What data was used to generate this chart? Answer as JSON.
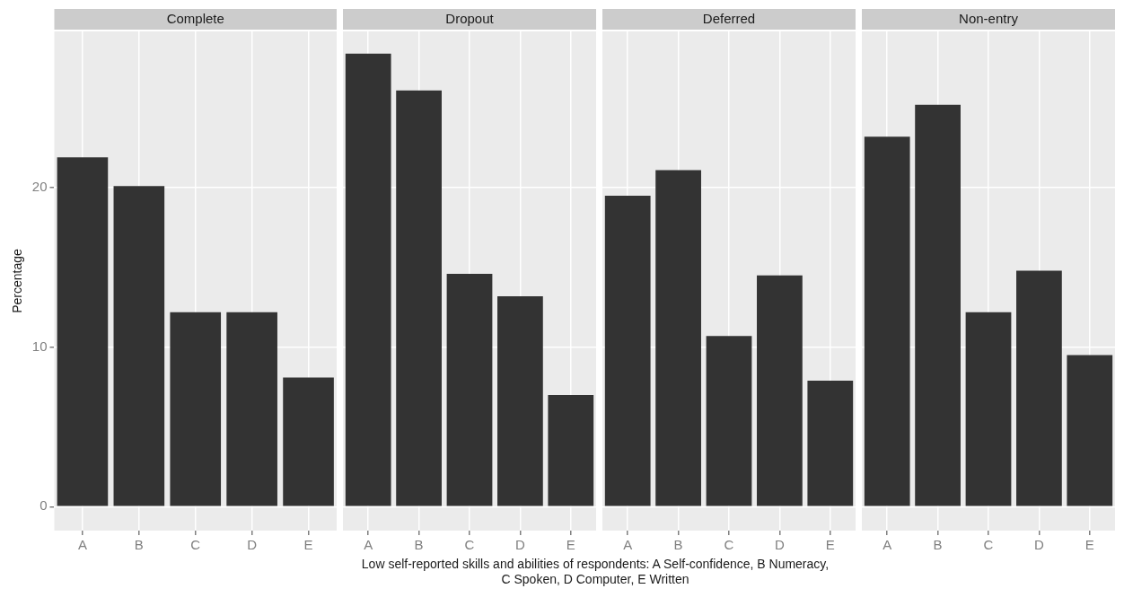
{
  "chart_data": [
    {
      "type": "bar",
      "title": "Complete",
      "categories": [
        "A",
        "B",
        "C",
        "D",
        "E"
      ],
      "values": [
        21.9,
        20.1,
        12.2,
        12.2,
        8.1
      ],
      "color": "#333333",
      "ylim": [
        -1.5,
        29.8
      ],
      "yticks": [
        0,
        10,
        20
      ],
      "grid": true,
      "ylabel": "Percentage",
      "xlabel": "Low self-reported skills and abilities of respondents: A Self-confidence, B Numeracy,\nC Spoken, D Computer, E Written"
    },
    {
      "type": "bar",
      "title": "Dropout",
      "categories": [
        "A",
        "B",
        "C",
        "D",
        "E"
      ],
      "values": [
        28.4,
        26.1,
        14.6,
        13.2,
        7.0
      ],
      "color": "#333333",
      "ylim": [
        -1.5,
        29.8
      ],
      "yticks": [
        0,
        10,
        20
      ],
      "grid": true,
      "tick_labels": "x"
    },
    {
      "type": "bar",
      "title": "Deferred",
      "categories": [
        "A",
        "B",
        "C",
        "D",
        "E"
      ],
      "values": [
        19.5,
        21.1,
        10.7,
        14.5,
        7.9
      ],
      "color": "#333333",
      "ylim": [
        -1.5,
        29.8
      ],
      "yticks": [
        0,
        10,
        20
      ],
      "grid": true,
      "tick_labels": "x"
    },
    {
      "type": "bar",
      "title": "Non-entry",
      "categories": [
        "A",
        "B",
        "C",
        "D",
        "E"
      ],
      "values": [
        23.2,
        25.2,
        12.2,
        14.8,
        9.5
      ],
      "color": "#333333",
      "ylim": [
        -1.5,
        29.8
      ],
      "yticks": [
        0,
        10,
        20
      ],
      "grid": true,
      "tick_labels": "x"
    }
  ]
}
